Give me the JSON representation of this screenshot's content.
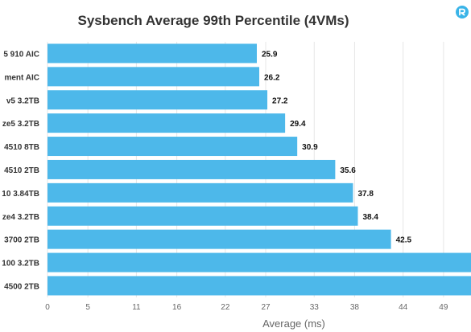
{
  "chart_data": {
    "type": "bar",
    "orientation": "horizontal",
    "title": "Sysbench Average 99th Percentile (4VMs)",
    "categories": [
      "5 910 AIC",
      "ment AIC",
      "v5 3.2TB",
      "ze5 3.2TB",
      "4510 8TB",
      "4510 2TB",
      "10 3.84TB",
      "ze4 3.2TB",
      "3700 2TB",
      "100 3.2TB",
      "4500 2TB"
    ],
    "values": [
      25.9,
      26.2,
      27.2,
      29.4,
      30.9,
      35.6,
      37.8,
      38.4,
      42.5,
      null,
      null
    ],
    "value_labels": [
      "25.9",
      "26.2",
      "27.2",
      "29.4",
      "30.9",
      "35.6",
      "37.8",
      "38.4",
      "42.5",
      "",
      ""
    ],
    "xlabel": "Average (ms)",
    "ylabel": "",
    "xticks": [
      "0",
      "5",
      "11",
      "16",
      "22",
      "27",
      "33",
      "38",
      "44",
      "49"
    ],
    "xlim": [
      0,
      52.4
    ],
    "grid": true,
    "bar_color": "#4db8ea",
    "logo_color": "#3ab4e8"
  }
}
